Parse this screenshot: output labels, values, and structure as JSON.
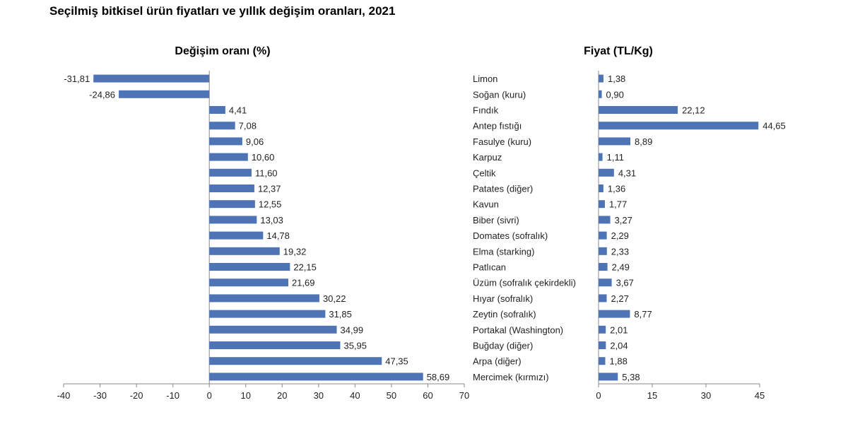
{
  "title": "Seçilmiş bitkisel ürün fiyatları ve yıllık değişim oranları, 2021",
  "colors": {
    "bar": "#4F74B6",
    "axis": "#888888"
  },
  "chart_data": [
    {
      "type": "bar",
      "orientation": "horizontal",
      "title": "Değişim oranı (%)",
      "values": [
        -31.81,
        -24.86,
        4.41,
        7.08,
        9.06,
        10.6,
        11.6,
        12.37,
        12.55,
        13.03,
        14.78,
        19.32,
        22.15,
        21.69,
        30.22,
        31.85,
        34.99,
        35.95,
        47.35,
        58.69
      ],
      "value_labels": [
        "-31,81",
        "-24,86",
        "4,41",
        "7,08",
        "9,06",
        "10,60",
        "11,60",
        "12,37",
        "12,55",
        "13,03",
        "14,78",
        "19,32",
        "22,15",
        "21,69",
        "30,22",
        "31,85",
        "34,99",
        "35,95",
        "47,35",
        "58,69"
      ],
      "xlim": [
        -40,
        70
      ],
      "xticks": [
        -40,
        -30,
        -20,
        -10,
        0,
        10,
        20,
        30,
        40,
        50,
        60,
        70
      ],
      "xtick_labels": [
        "-40",
        "-30",
        "-20",
        "-10",
        "0",
        "10",
        "20",
        "30",
        "40",
        "50",
        "60",
        "70"
      ]
    },
    {
      "type": "bar",
      "orientation": "horizontal",
      "title": "Fiyat (TL/Kg)",
      "categories": [
        "Limon",
        "Soğan (kuru)",
        "Fındık",
        "Antep fıstığı",
        "Fasulye (kuru)",
        "Karpuz",
        "Çeltik",
        "Patates (diğer)",
        "Kavun",
        "Biber (sivri)",
        "Domates (sofralık)",
        "Elma (starking)",
        "Patlıcan",
        "Üzüm (sofralık çekirdekli)",
        "Hıyar (sofralık)",
        "Zeytin (sofralık)",
        "Portakal (Washington)",
        "Buğday (diğer)",
        "Arpa (diğer)",
        "Mercimek (kırmızı)"
      ],
      "values": [
        1.38,
        0.9,
        22.12,
        44.65,
        8.89,
        1.11,
        4.31,
        1.36,
        1.77,
        3.27,
        2.29,
        2.33,
        2.49,
        3.67,
        2.27,
        8.77,
        2.01,
        2.04,
        1.88,
        5.38
      ],
      "value_labels": [
        "1,38",
        "0,90",
        "22,12",
        "44,65",
        "8,89",
        "1,11",
        "4,31",
        "1,36",
        "1,77",
        "3,27",
        "2,29",
        "2,33",
        "2,49",
        "3,67",
        "2,27",
        "8,77",
        "2,01",
        "2,04",
        "1,88",
        "5,38"
      ],
      "xlim": [
        0,
        45
      ],
      "xticks": [
        0,
        15,
        30,
        45
      ],
      "xtick_labels": [
        "0",
        "15",
        "30",
        "45"
      ]
    }
  ]
}
